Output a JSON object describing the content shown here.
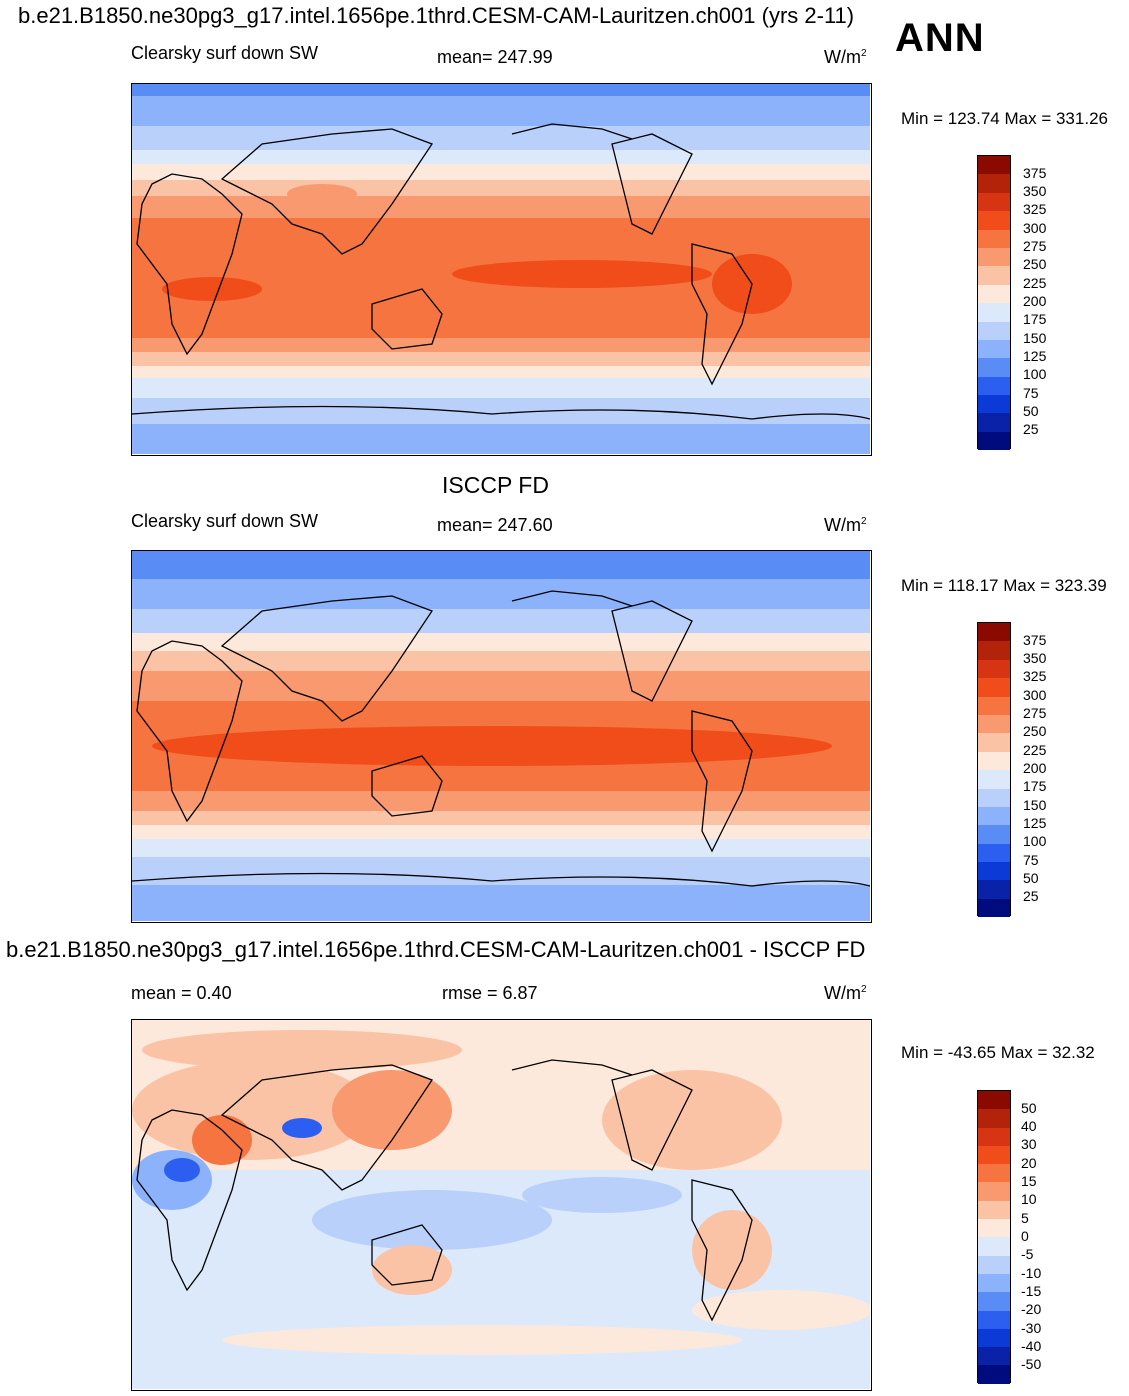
{
  "header": {
    "case_title": "b.e21.B1850.ne30pg3_g17.intel.1656pe.1thrd.CESM-CAM-Lauritzen.ch001 (yrs 2-11)",
    "season": "ANN"
  },
  "panels": [
    {
      "id": "model",
      "left_label": "Clearsky surf down SW",
      "center_label": "mean= 247.99",
      "units": "W/m",
      "units_sup": "2",
      "minmax": "Min = 123.74 Max = 331.26",
      "colorbar_ticks": [
        "375",
        "350",
        "325",
        "300",
        "275",
        "250",
        "225",
        "200",
        "175",
        "150",
        "125",
        "100",
        "75",
        "50",
        "25"
      ]
    },
    {
      "id": "obs",
      "title": "ISCCP FD",
      "left_label": "Clearsky surf down SW",
      "center_label": "mean= 247.60",
      "units": "W/m",
      "units_sup": "2",
      "minmax": "Min = 118.17 Max = 323.39",
      "colorbar_ticks": [
        "375",
        "350",
        "325",
        "300",
        "275",
        "250",
        "225",
        "200",
        "175",
        "150",
        "125",
        "100",
        "75",
        "50",
        "25"
      ]
    },
    {
      "id": "diff",
      "title": "b.e21.B1850.ne30pg3_g17.intel.1656pe.1thrd.CESM-CAM-Lauritzen.ch001 - ISCCP FD",
      "left_label": "mean =   0.40",
      "center_label": "rmse =    6.87",
      "units": "W/m",
      "units_sup": "2",
      "minmax": "Min = -43.65 Max =  32.32",
      "colorbar_ticks": [
        "50",
        "40",
        "30",
        "20",
        "15",
        "10",
        "5",
        "0",
        "-5",
        "-10",
        "-15",
        "-20",
        "-30",
        "-40",
        "-50"
      ]
    }
  ],
  "colors": {
    "colorbar": [
      "#8b0a00",
      "#b3230a",
      "#d63412",
      "#f04d1a",
      "#f5743f",
      "#f89970",
      "#fbc3a6",
      "#fde9dc",
      "#dbe9fb",
      "#b9d0fb",
      "#8cb2fb",
      "#5a8cf5",
      "#2c5ef0",
      "#0c3ad6",
      "#0a22a8",
      "#000c7d"
    ]
  }
}
